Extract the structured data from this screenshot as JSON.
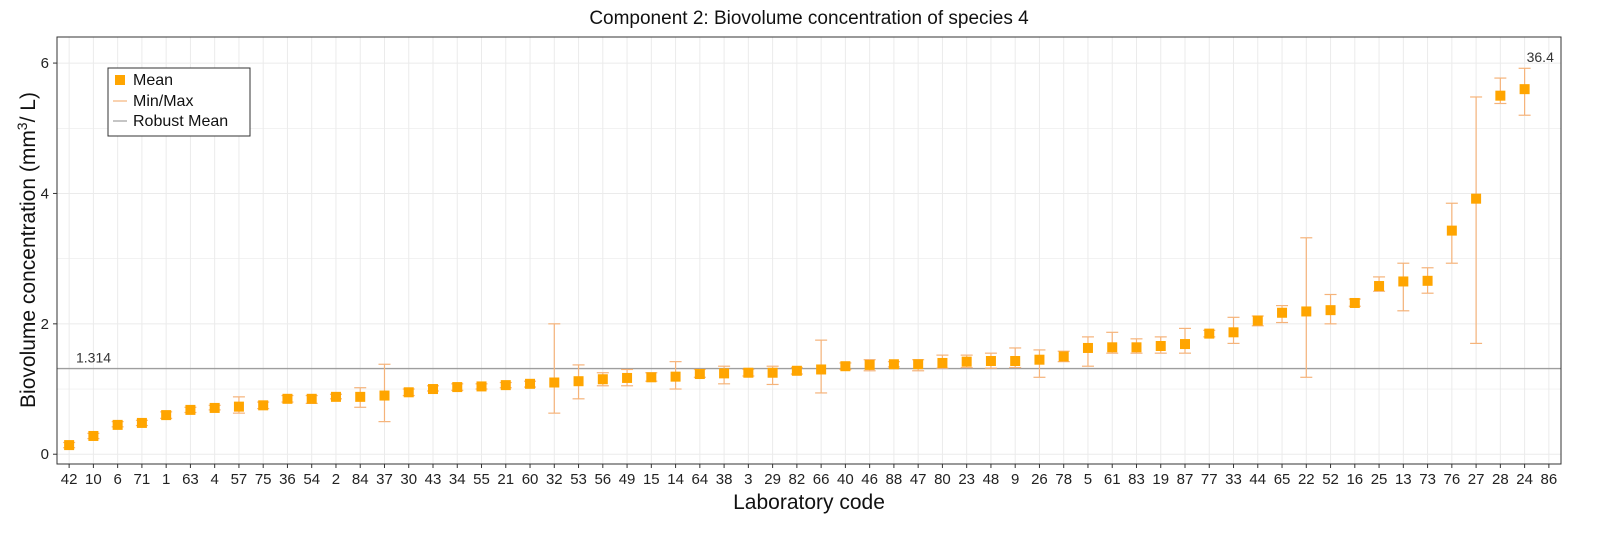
{
  "chart_data": {
    "type": "scatter",
    "title": "Component 2: Biovolume concentration of species 4",
    "xlabel": "Laboratory code",
    "ylabel_main": "Biovolume concentration  (mm",
    "ylabel_sup": "3",
    "ylabel_end": "/ L)",
    "ylim": [
      -0.15,
      6.4
    ],
    "yticks": [
      0,
      2,
      4,
      6
    ],
    "grid": true,
    "legend_position": "top-left",
    "legend": {
      "mean": "Mean",
      "minmax": "Min/Max",
      "robust": "Robust Mean"
    },
    "robust_mean": 1.314,
    "robust_mean_label": "1.314",
    "offscale_label": "36.4",
    "offscale_lab": "86",
    "colors": {
      "mean": "#ffa500",
      "minmax": "#f5b37a",
      "robust": "#9e9e9e",
      "grid": "#ebebeb",
      "panel_border": "#333333"
    },
    "categories": [
      "42",
      "10",
      "6",
      "71",
      "1",
      "63",
      "4",
      "57",
      "75",
      "36",
      "54",
      "2",
      "84",
      "37",
      "30",
      "43",
      "34",
      "55",
      "21",
      "60",
      "32",
      "53",
      "56",
      "49",
      "15",
      "14",
      "64",
      "38",
      "3",
      "29",
      "82",
      "66",
      "40",
      "46",
      "88",
      "47",
      "80",
      "23",
      "48",
      "9",
      "26",
      "78",
      "5",
      "61",
      "83",
      "19",
      "87",
      "77",
      "33",
      "44",
      "65",
      "22",
      "52",
      "16",
      "25",
      "13",
      "73",
      "76",
      "27",
      "28",
      "24",
      "86"
    ],
    "means": [
      0.14,
      0.28,
      0.45,
      0.48,
      0.6,
      0.68,
      0.71,
      0.73,
      0.75,
      0.85,
      0.85,
      0.88,
      0.88,
      0.9,
      0.95,
      1.0,
      1.03,
      1.04,
      1.06,
      1.08,
      1.1,
      1.12,
      1.15,
      1.17,
      1.18,
      1.19,
      1.23,
      1.24,
      1.25,
      1.25,
      1.28,
      1.3,
      1.35,
      1.37,
      1.38,
      1.38,
      1.4,
      1.42,
      1.43,
      1.43,
      1.45,
      1.5,
      1.63,
      1.64,
      1.64,
      1.66,
      1.69,
      1.85,
      1.87,
      2.05,
      2.17,
      2.19,
      2.21,
      2.32,
      2.58,
      2.65,
      2.66,
      3.43,
      3.92,
      5.5,
      5.6,
      null
    ],
    "mins": [
      0.1,
      0.24,
      0.42,
      0.44,
      0.55,
      0.64,
      0.68,
      0.63,
      0.7,
      0.8,
      0.78,
      0.85,
      0.72,
      0.5,
      0.9,
      0.97,
      0.98,
      1.0,
      1.02,
      1.03,
      0.63,
      0.85,
      1.05,
      1.05,
      1.12,
      1.0,
      1.18,
      1.08,
      1.2,
      1.07,
      1.23,
      0.94,
      1.3,
      1.28,
      1.34,
      1.28,
      1.32,
      1.33,
      1.32,
      1.33,
      1.18,
      1.42,
      1.35,
      1.55,
      1.55,
      1.55,
      1.55,
      1.8,
      1.7,
      1.97,
      2.02,
      1.18,
      2.0,
      2.27,
      2.5,
      2.2,
      2.47,
      2.93,
      1.7,
      5.38,
      5.2,
      null
    ],
    "maxs": [
      0.18,
      0.32,
      0.5,
      0.52,
      0.65,
      0.72,
      0.75,
      0.88,
      0.8,
      0.9,
      0.9,
      0.92,
      1.02,
      1.38,
      1.0,
      1.05,
      1.08,
      1.08,
      1.1,
      1.12,
      2.0,
      1.37,
      1.25,
      1.3,
      1.25,
      1.42,
      1.3,
      1.35,
      1.3,
      1.35,
      1.33,
      1.75,
      1.4,
      1.45,
      1.42,
      1.45,
      1.52,
      1.52,
      1.55,
      1.63,
      1.6,
      1.58,
      1.8,
      1.87,
      1.77,
      1.8,
      1.93,
      1.9,
      2.1,
      2.12,
      2.28,
      3.32,
      2.45,
      2.38,
      2.72,
      2.93,
      2.86,
      3.85,
      5.48,
      5.77,
      5.92,
      null
    ]
  }
}
